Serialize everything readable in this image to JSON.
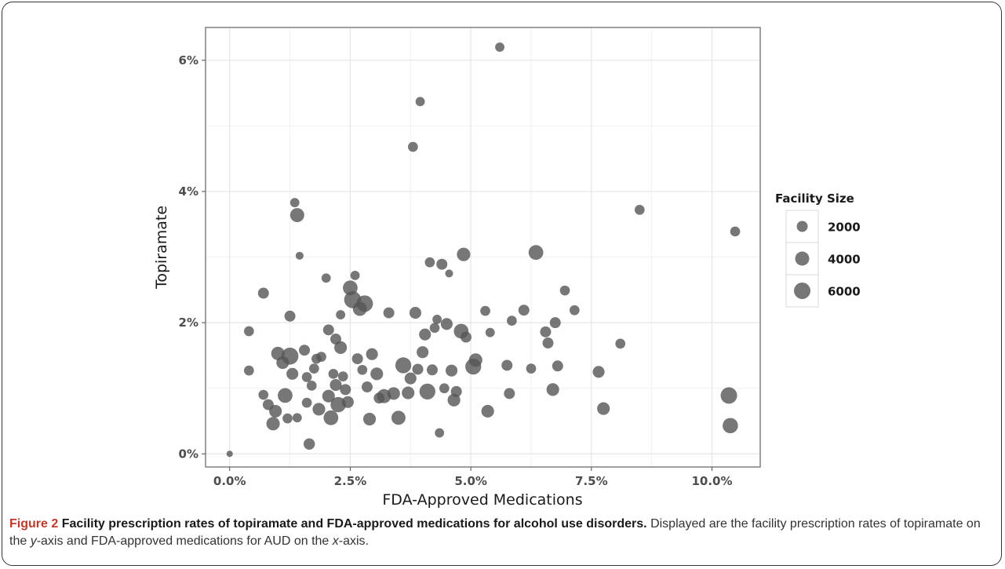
{
  "figure": {
    "label": "Figure 2",
    "title": "Facility prescription rates of topiramate and FDA-approved medications for alcohol use disorders.",
    "caption_parts": [
      {
        "text": " Displayed are the facility prescription rates of topiramate on the ",
        "italic": false
      },
      {
        "text": "y",
        "italic": true
      },
      {
        "text": "-axis and FDA-approved medications for AUD on the ",
        "italic": false
      },
      {
        "text": "x",
        "italic": true
      },
      {
        "text": "-axis.",
        "italic": false
      }
    ]
  },
  "chart_data": {
    "type": "scatter",
    "xlabel": "FDA-Approved Medications",
    "ylabel": "Topiramate",
    "xlim": [
      -0.005,
      0.11
    ],
    "ylim": [
      -0.002,
      0.065
    ],
    "x_ticks": [
      0,
      0.025,
      0.05,
      0.075,
      0.1
    ],
    "x_tick_labels": [
      "0.0%",
      "2.5%",
      "5.0%",
      "7.5%",
      "10.0%"
    ],
    "y_ticks": [
      0,
      0.02,
      0.04,
      0.06
    ],
    "y_tick_labels": [
      "0%",
      "2%",
      "4%",
      "6%"
    ],
    "grid": true,
    "point_color": "#555555",
    "point_opacity": 0.8,
    "panel_background": "#ffffff",
    "grid_color": "#e5e5e5",
    "legend": {
      "title": "Facility Size",
      "position": "right",
      "entries": [
        {
          "label": "2000",
          "size": 2000
        },
        {
          "label": "4000",
          "size": 4000
        },
        {
          "label": "6000",
          "size": 6000
        }
      ]
    },
    "points": [
      {
        "x": 0.0,
        "y": 0.0,
        "size": 300
      },
      {
        "x": 0.004,
        "y": 0.0187,
        "size": 1500
      },
      {
        "x": 0.004,
        "y": 0.0127,
        "size": 1500
      },
      {
        "x": 0.007,
        "y": 0.0245,
        "size": 2000
      },
      {
        "x": 0.007,
        "y": 0.009,
        "size": 1500
      },
      {
        "x": 0.008,
        "y": 0.0075,
        "size": 2000
      },
      {
        "x": 0.009,
        "y": 0.0046,
        "size": 3500
      },
      {
        "x": 0.0095,
        "y": 0.0065,
        "size": 3000
      },
      {
        "x": 0.01,
        "y": 0.0153,
        "size": 3500
      },
      {
        "x": 0.011,
        "y": 0.0139,
        "size": 3000
      },
      {
        "x": 0.0115,
        "y": 0.0089,
        "size": 4500
      },
      {
        "x": 0.012,
        "y": 0.0054,
        "size": 1500
      },
      {
        "x": 0.0125,
        "y": 0.0149,
        "size": 6500
      },
      {
        "x": 0.0125,
        "y": 0.021,
        "size": 2000
      },
      {
        "x": 0.013,
        "y": 0.0122,
        "size": 2500
      },
      {
        "x": 0.0135,
        "y": 0.0383,
        "size": 1200
      },
      {
        "x": 0.014,
        "y": 0.0364,
        "size": 4000
      },
      {
        "x": 0.0145,
        "y": 0.0302,
        "size": 700
      },
      {
        "x": 0.014,
        "y": 0.0055,
        "size": 1200
      },
      {
        "x": 0.0155,
        "y": 0.0158,
        "size": 2000
      },
      {
        "x": 0.016,
        "y": 0.0117,
        "size": 1500
      },
      {
        "x": 0.016,
        "y": 0.0078,
        "size": 1500
      },
      {
        "x": 0.0165,
        "y": 0.0015,
        "size": 2200
      },
      {
        "x": 0.017,
        "y": 0.0104,
        "size": 1500
      },
      {
        "x": 0.0175,
        "y": 0.013,
        "size": 1500
      },
      {
        "x": 0.018,
        "y": 0.0145,
        "size": 1500
      },
      {
        "x": 0.0185,
        "y": 0.0068,
        "size": 3000
      },
      {
        "x": 0.019,
        "y": 0.0148,
        "size": 1500
      },
      {
        "x": 0.02,
        "y": 0.0268,
        "size": 1200
      },
      {
        "x": 0.0205,
        "y": 0.0189,
        "size": 2000
      },
      {
        "x": 0.0205,
        "y": 0.0088,
        "size": 3000
      },
      {
        "x": 0.021,
        "y": 0.0055,
        "size": 4500
      },
      {
        "x": 0.0215,
        "y": 0.0122,
        "size": 1500
      },
      {
        "x": 0.022,
        "y": 0.0175,
        "size": 2000
      },
      {
        "x": 0.022,
        "y": 0.0105,
        "size": 2500
      },
      {
        "x": 0.0225,
        "y": 0.0075,
        "size": 5000
      },
      {
        "x": 0.023,
        "y": 0.0162,
        "size": 3000
      },
      {
        "x": 0.023,
        "y": 0.0212,
        "size": 1200
      },
      {
        "x": 0.0235,
        "y": 0.0118,
        "size": 1500
      },
      {
        "x": 0.024,
        "y": 0.0098,
        "size": 2000
      },
      {
        "x": 0.0245,
        "y": 0.0079,
        "size": 2500
      },
      {
        "x": 0.025,
        "y": 0.0253,
        "size": 4500
      },
      {
        "x": 0.0255,
        "y": 0.0235,
        "size": 6500
      },
      {
        "x": 0.026,
        "y": 0.0272,
        "size": 1200
      },
      {
        "x": 0.0265,
        "y": 0.0145,
        "size": 2000
      },
      {
        "x": 0.027,
        "y": 0.0221,
        "size": 4000
      },
      {
        "x": 0.0275,
        "y": 0.0128,
        "size": 1500
      },
      {
        "x": 0.028,
        "y": 0.0229,
        "size": 6000
      },
      {
        "x": 0.0285,
        "y": 0.0102,
        "size": 2000
      },
      {
        "x": 0.029,
        "y": 0.0053,
        "size": 3000
      },
      {
        "x": 0.0295,
        "y": 0.0152,
        "size": 2500
      },
      {
        "x": 0.0305,
        "y": 0.0122,
        "size": 3000
      },
      {
        "x": 0.031,
        "y": 0.0085,
        "size": 2000
      },
      {
        "x": 0.032,
        "y": 0.0088,
        "size": 4000
      },
      {
        "x": 0.033,
        "y": 0.0215,
        "size": 2000
      },
      {
        "x": 0.034,
        "y": 0.0092,
        "size": 3000
      },
      {
        "x": 0.035,
        "y": 0.0055,
        "size": 4000
      },
      {
        "x": 0.036,
        "y": 0.0135,
        "size": 5500
      },
      {
        "x": 0.037,
        "y": 0.0093,
        "size": 3000
      },
      {
        "x": 0.0375,
        "y": 0.0115,
        "size": 2500
      },
      {
        "x": 0.038,
        "y": 0.0468,
        "size": 1500
      },
      {
        "x": 0.0385,
        "y": 0.0215,
        "size": 2500
      },
      {
        "x": 0.039,
        "y": 0.0129,
        "size": 2000
      },
      {
        "x": 0.0395,
        "y": 0.0537,
        "size": 1200
      },
      {
        "x": 0.04,
        "y": 0.0155,
        "size": 2500
      },
      {
        "x": 0.0405,
        "y": 0.0182,
        "size": 2500
      },
      {
        "x": 0.041,
        "y": 0.0095,
        "size": 5500
      },
      {
        "x": 0.0415,
        "y": 0.0292,
        "size": 1500
      },
      {
        "x": 0.042,
        "y": 0.0128,
        "size": 2000
      },
      {
        "x": 0.0425,
        "y": 0.0192,
        "size": 1500
      },
      {
        "x": 0.043,
        "y": 0.0205,
        "size": 1200
      },
      {
        "x": 0.0435,
        "y": 0.0032,
        "size": 1200
      },
      {
        "x": 0.044,
        "y": 0.0289,
        "size": 2000
      },
      {
        "x": 0.0445,
        "y": 0.01,
        "size": 1500
      },
      {
        "x": 0.045,
        "y": 0.0198,
        "size": 2500
      },
      {
        "x": 0.0455,
        "y": 0.0275,
        "size": 700
      },
      {
        "x": 0.046,
        "y": 0.0127,
        "size": 2500
      },
      {
        "x": 0.0465,
        "y": 0.0082,
        "size": 3000
      },
      {
        "x": 0.047,
        "y": 0.0095,
        "size": 2000
      },
      {
        "x": 0.048,
        "y": 0.0187,
        "size": 4500
      },
      {
        "x": 0.0485,
        "y": 0.0304,
        "size": 3500
      },
      {
        "x": 0.049,
        "y": 0.0178,
        "size": 2000
      },
      {
        "x": 0.0505,
        "y": 0.0133,
        "size": 5500
      },
      {
        "x": 0.051,
        "y": 0.0143,
        "size": 3500
      },
      {
        "x": 0.053,
        "y": 0.0218,
        "size": 1500
      },
      {
        "x": 0.0535,
        "y": 0.0065,
        "size": 3000
      },
      {
        "x": 0.054,
        "y": 0.0185,
        "size": 1200
      },
      {
        "x": 0.056,
        "y": 0.062,
        "size": 1200
      },
      {
        "x": 0.0575,
        "y": 0.0135,
        "size": 2000
      },
      {
        "x": 0.058,
        "y": 0.0092,
        "size": 2000
      },
      {
        "x": 0.0585,
        "y": 0.0203,
        "size": 1500
      },
      {
        "x": 0.061,
        "y": 0.0219,
        "size": 2000
      },
      {
        "x": 0.0625,
        "y": 0.013,
        "size": 1500
      },
      {
        "x": 0.0635,
        "y": 0.0307,
        "size": 4500
      },
      {
        "x": 0.0655,
        "y": 0.0186,
        "size": 2000
      },
      {
        "x": 0.066,
        "y": 0.0169,
        "size": 2000
      },
      {
        "x": 0.067,
        "y": 0.0098,
        "size": 3000
      },
      {
        "x": 0.0675,
        "y": 0.02,
        "size": 2000
      },
      {
        "x": 0.068,
        "y": 0.0134,
        "size": 2000
      },
      {
        "x": 0.0695,
        "y": 0.0249,
        "size": 1500
      },
      {
        "x": 0.0715,
        "y": 0.0219,
        "size": 1500
      },
      {
        "x": 0.0765,
        "y": 0.0125,
        "size": 2500
      },
      {
        "x": 0.0775,
        "y": 0.0069,
        "size": 3000
      },
      {
        "x": 0.081,
        "y": 0.0168,
        "size": 1500
      },
      {
        "x": 0.085,
        "y": 0.0372,
        "size": 1500
      },
      {
        "x": 0.1035,
        "y": 0.0089,
        "size": 6000
      },
      {
        "x": 0.1038,
        "y": 0.0043,
        "size": 5000
      },
      {
        "x": 0.1048,
        "y": 0.0339,
        "size": 1500
      }
    ]
  }
}
